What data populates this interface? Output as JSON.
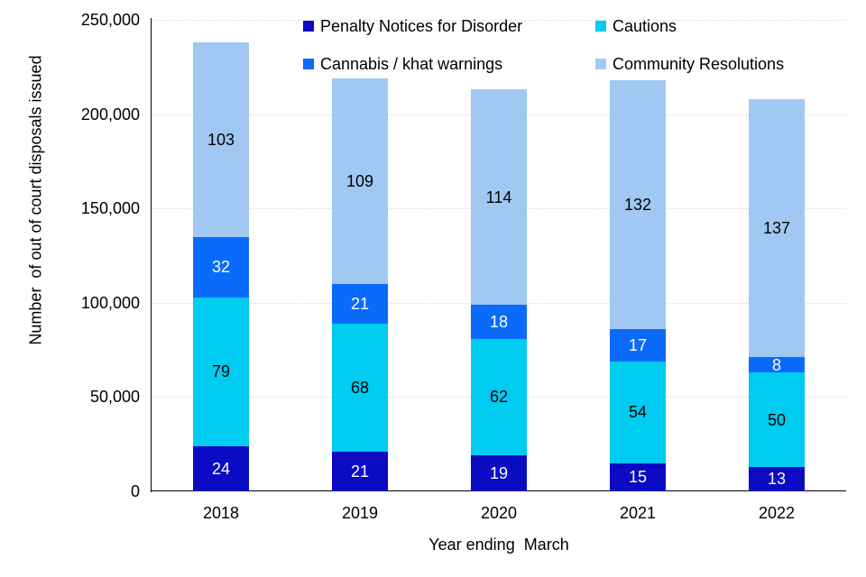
{
  "chart_data": {
    "type": "stacked-bar",
    "title": "",
    "xlabel": "Year ending  March",
    "ylabel": "Number  of out of court disposals issued",
    "values_unit": "thousands",
    "legend_position": "top",
    "grid": "horizontal-dotted",
    "gridline_color": "#d9d9d9",
    "axis_color": "#000000",
    "ylim": [
      0,
      250
    ],
    "yticks": [
      {
        "v": 0,
        "label": "0"
      },
      {
        "v": 50,
        "label": "50,000"
      },
      {
        "v": 100,
        "label": "100,000"
      },
      {
        "v": 150,
        "label": "150,000"
      },
      {
        "v": 200,
        "label": "200,000"
      },
      {
        "v": 250,
        "label": "250,000"
      }
    ],
    "categories": [
      "2018",
      "2019",
      "2020",
      "2021",
      "2022"
    ],
    "series": [
      {
        "name": "Penalty Notices for Disorder",
        "color": "#0b0bc4",
        "label_color": "#ffffff",
        "values": [
          24,
          21,
          19,
          15,
          13
        ]
      },
      {
        "name": "Cautions",
        "color": "#00cbf0",
        "label_color": "#000000",
        "values": [
          79,
          68,
          62,
          54,
          50
        ]
      },
      {
        "name": "Cannabis / khat warnings",
        "color": "#0a6bfa",
        "label_color": "#ffffff",
        "values": [
          32,
          21,
          18,
          17,
          8
        ]
      },
      {
        "name": "Community Resolutions",
        "color": "#a0c8f2",
        "label_color": "#000000",
        "values": [
          103,
          109,
          114,
          132,
          137
        ]
      }
    ]
  }
}
